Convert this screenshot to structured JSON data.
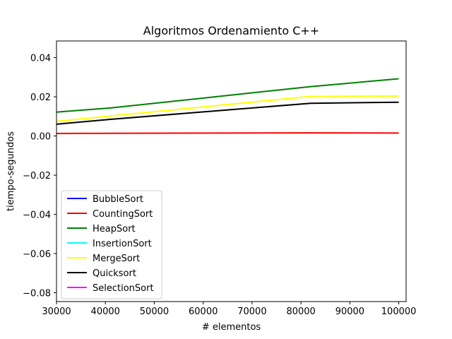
{
  "chart_data": {
    "type": "line",
    "title": "Algoritmos Ordenamiento C++",
    "xlabel": "# elementos",
    "ylabel": "tiempo-segundos",
    "xlim": [
      30000,
      101500
    ],
    "ylim": [
      -0.0845,
      0.0485
    ],
    "x_ticks": [
      30000,
      40000,
      50000,
      60000,
      70000,
      80000,
      90000,
      100000
    ],
    "y_ticks": [
      0.04,
      0.02,
      0.0,
      -0.02,
      -0.04,
      -0.06,
      -0.08
    ],
    "y_tick_labels": [
      "0.04",
      "0.02",
      "0.00",
      "−0.02",
      "−0.04",
      "−0.06",
      "−0.08"
    ],
    "grid": false,
    "legend_position": "lower-left",
    "series": [
      {
        "name": "BubbleSort",
        "color": "#0000ff",
        "x": [],
        "y": []
      },
      {
        "name": "CountingSort",
        "color": "#ff0000",
        "x": [
          30000,
          41000,
          82000,
          100000
        ],
        "y": [
          0.0013,
          0.0014,
          0.0016,
          0.0015
        ]
      },
      {
        "name": "HeapSort",
        "color": "#008000",
        "x": [
          30000,
          41000,
          82000,
          100000
        ],
        "y": [
          0.0122,
          0.0143,
          0.0252,
          0.0292
        ]
      },
      {
        "name": "InsertionSort",
        "color": "#00ffff",
        "x": [],
        "y": []
      },
      {
        "name": "MergeSort",
        "color": "#ffff00",
        "x": [
          30000,
          41000,
          82000,
          100000
        ],
        "y": [
          0.0075,
          0.0102,
          0.0202,
          0.0204
        ]
      },
      {
        "name": "Quicksort",
        "color": "#000000",
        "x": [
          30000,
          41000,
          82000,
          100000
        ],
        "y": [
          0.006,
          0.0085,
          0.0167,
          0.0172
        ]
      },
      {
        "name": "SelectionSort",
        "color": "#ff00ff",
        "x": [],
        "y": []
      }
    ]
  }
}
